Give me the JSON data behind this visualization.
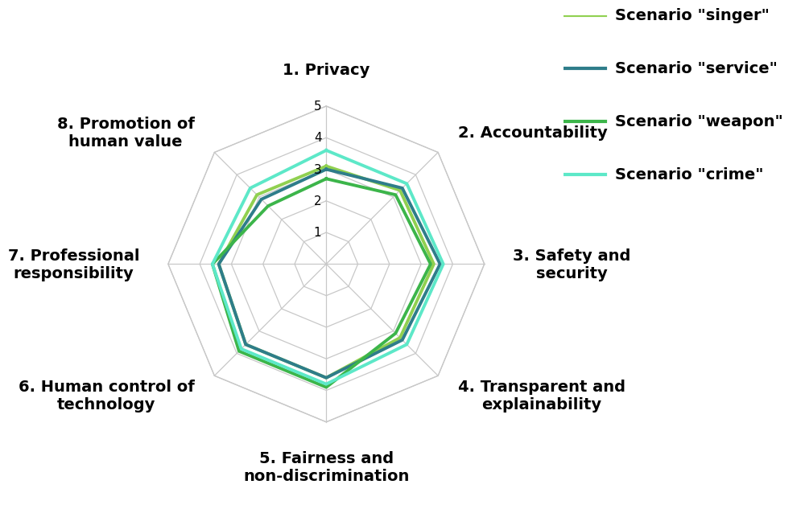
{
  "categories": [
    "1. Privacy",
    "2. Accountability",
    "3. Safety and\nsecurity",
    "4. Transparent and\nexplainability",
    "5. Fairness and\nnon-discrimination",
    "6. Human control of\ntechnology",
    "7. Professional\nresponsibility",
    "8. Promotion of\nhuman value"
  ],
  "scenarios": [
    {
      "label": "Scenario \"singer\"",
      "color": "#90d050",
      "linewidth": 2.8,
      "values": [
        3.1,
        3.3,
        3.4,
        3.3,
        3.6,
        3.6,
        3.4,
        3.1
      ]
    },
    {
      "label": "Scenario \"service\"",
      "color": "#2e7d8a",
      "linewidth": 2.8,
      "values": [
        3.0,
        3.4,
        3.6,
        3.4,
        3.6,
        3.6,
        3.4,
        2.9
      ]
    },
    {
      "label": "Scenario \"weapon\"",
      "color": "#3cb54a",
      "linewidth": 2.8,
      "values": [
        2.7,
        3.1,
        3.3,
        3.1,
        3.9,
        3.9,
        3.6,
        2.6
      ]
    },
    {
      "label": "Scenario \"crime\"",
      "color": "#5de8c8",
      "linewidth": 2.8,
      "values": [
        3.6,
        3.6,
        3.7,
        3.6,
        3.8,
        3.8,
        3.6,
        3.4
      ]
    }
  ],
  "r_max": 5,
  "r_ticks": [
    1,
    2,
    3,
    4,
    5
  ],
  "background_color": "#ffffff",
  "grid_color": "#c8c8c8",
  "label_fontsize": 14,
  "tick_fontsize": 11,
  "legend_fontsize": 14
}
